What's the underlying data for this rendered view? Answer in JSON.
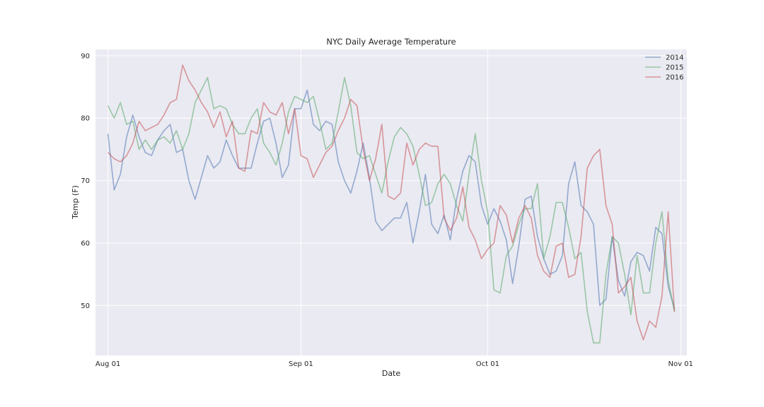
{
  "chart_data": {
    "type": "line",
    "title": "NYC Daily Average Temperature",
    "xlabel": "Date",
    "ylabel": "Temp (F)",
    "x_start": "2016-08-01",
    "xlim": [
      "2016-07-30",
      "2016-11-02"
    ],
    "ylim": [
      42,
      91
    ],
    "x_ticks": [
      {
        "date": "2016-08-01",
        "label": "Aug 01"
      },
      {
        "date": "2016-09-01",
        "label": "Sep 01"
      },
      {
        "date": "2016-10-01",
        "label": "Oct 01"
      },
      {
        "date": "2016-11-01",
        "label": "Nov 01"
      }
    ],
    "y_ticks": [
      {
        "value": 50,
        "label": "50"
      },
      {
        "value": 60,
        "label": "60"
      },
      {
        "value": 70,
        "label": "70"
      },
      {
        "value": 80,
        "label": "80"
      },
      {
        "value": 90,
        "label": "90"
      }
    ],
    "grid": true,
    "legend_position": "top-right",
    "series": [
      {
        "name": "2014",
        "color": "#4c72b0",
        "values": [
          77.5,
          68.5,
          71,
          77,
          80.5,
          77,
          74.5,
          74,
          76.5,
          78,
          79,
          74.5,
          75,
          70,
          67,
          70.5,
          74,
          72,
          73,
          76.5,
          74,
          72,
          72,
          72,
          76,
          79.5,
          80,
          76,
          70.5,
          72.5,
          81.5,
          81.5,
          84.5,
          79,
          78,
          79.5,
          79,
          73,
          70,
          68,
          71.5,
          76,
          70.5,
          63.5,
          62,
          63,
          64,
          64,
          66.5,
          60,
          65,
          71,
          63,
          61.5,
          64.5,
          60.5,
          67,
          71.5,
          74,
          73,
          66,
          63,
          65.5,
          63.5,
          60.5,
          53.5,
          59.5,
          67,
          67.5,
          61,
          57.5,
          55,
          55.5,
          58,
          69.5,
          73,
          66,
          65,
          63,
          50,
          51,
          61,
          54,
          51.5,
          57,
          58.5,
          58,
          55.5,
          62.5,
          61.5,
          53,
          49.5
        ]
      },
      {
        "name": "2015",
        "color": "#55a868",
        "values": [
          82,
          80,
          82.5,
          79,
          79.5,
          75,
          76.5,
          75,
          76.5,
          77,
          76,
          78,
          75,
          77.5,
          82.5,
          84.5,
          86.5,
          81.5,
          82,
          81.5,
          79,
          77.5,
          77.5,
          80,
          81.5,
          76,
          74.5,
          72.5,
          76,
          81,
          83.5,
          83,
          82.5,
          83.5,
          79.5,
          75,
          76,
          81,
          86.5,
          82,
          74.5,
          73.5,
          74,
          71,
          68,
          73,
          77,
          78.5,
          77.5,
          75.5,
          71,
          66,
          66.5,
          69.5,
          71,
          69.5,
          66,
          63.5,
          71,
          77.5,
          70,
          65,
          52.5,
          52,
          58,
          59.5,
          63,
          65.5,
          65.5,
          69.5,
          57.5,
          61,
          66.5,
          66.5,
          62.5,
          57.5,
          58.5,
          49,
          44,
          44,
          55,
          61,
          60,
          55,
          48.5,
          58,
          52,
          52,
          60,
          65,
          54,
          49
        ]
      },
      {
        "name": "2016",
        "color": "#c44e52",
        "values": [
          74.5,
          73.5,
          73,
          74,
          76,
          79.5,
          78,
          78.5,
          79,
          80.5,
          82.5,
          83,
          88.5,
          86,
          84.5,
          82.5,
          81,
          78.5,
          81,
          77,
          79.5,
          72,
          71.5,
          78,
          77.5,
          82.5,
          81,
          80.5,
          82.5,
          77.5,
          81.5,
          74,
          73.5,
          70.5,
          72.5,
          74.5,
          75.5,
          78,
          80,
          83,
          82,
          75,
          70,
          73.5,
          79,
          67.5,
          67,
          68,
          76,
          72.5,
          75,
          76,
          75.5,
          75.5,
          64,
          62,
          64,
          69,
          62.5,
          60.5,
          57.5,
          59,
          60,
          66,
          64.5,
          60,
          64,
          66,
          64,
          58,
          55.5,
          54.5,
          59.5,
          60,
          54.5,
          55,
          61,
          72,
          74,
          75,
          66,
          63,
          52,
          53,
          54.5,
          47.5,
          44.5,
          47.5,
          46.5,
          51.5,
          65,
          49
        ]
      }
    ]
  }
}
